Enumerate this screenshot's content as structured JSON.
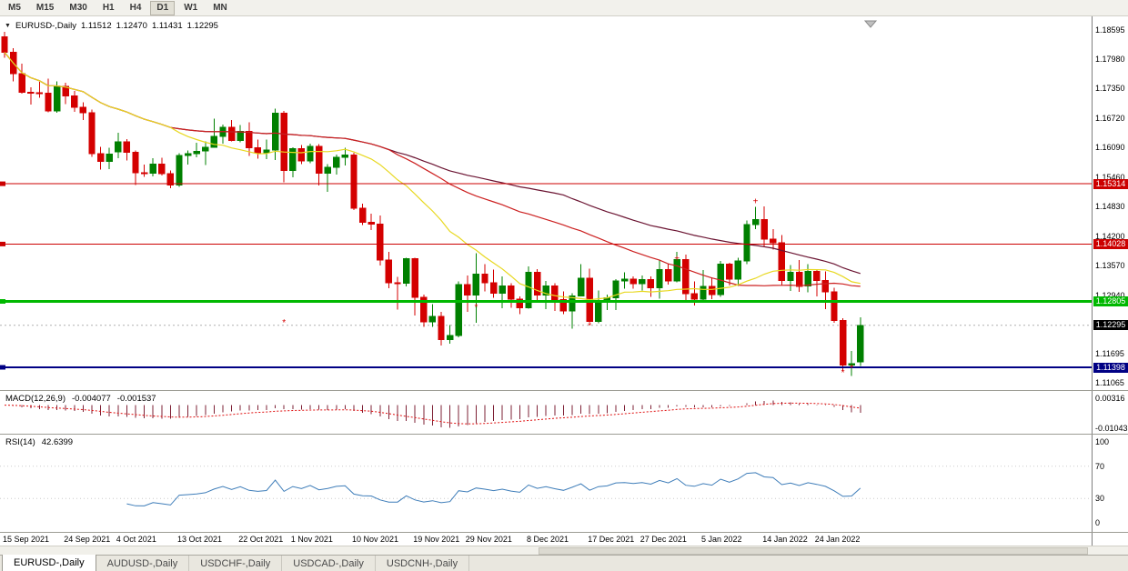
{
  "toolbar": {
    "timeframes": [
      "M5",
      "M15",
      "M30",
      "H1",
      "H4",
      "D1",
      "W1",
      "MN"
    ],
    "active": "D1"
  },
  "chart_header": {
    "dropdown_icon": "▼",
    "symbol": "EURUSD-,Daily",
    "open": "1.11512",
    "high": "1.12470",
    "low": "1.11431",
    "close": "1.12295"
  },
  "price_axis": {
    "ticks": [
      "1.18595",
      "1.17980",
      "1.17350",
      "1.16720",
      "1.16090",
      "1.15460",
      "1.14830",
      "1.14200",
      "1.13570",
      "1.12940",
      "1.12310",
      "1.11695",
      "1.11065"
    ]
  },
  "hlines": [
    {
      "price": 1.15314,
      "label": "1.15314",
      "color": "#cc0000",
      "thickness": 1
    },
    {
      "price": 1.14028,
      "label": "1.14028",
      "color": "#cc0000",
      "thickness": 1
    },
    {
      "price": 1.12805,
      "label": "1.12805",
      "color": "#00b800",
      "thickness": 3
    },
    {
      "price": 1.11398,
      "label": "1.11398",
      "color": "#000084",
      "thickness": 2
    }
  ],
  "current_price": {
    "value": 1.12295,
    "label": "1.12295",
    "badge_color": "#000000"
  },
  "macd": {
    "label": "MACD(12,26,9)",
    "main_value": "-0.004077",
    "signal_value": "-0.001537",
    "fast": 12,
    "slow": 26,
    "signal": 9,
    "axis_ticks": [
      "0.00316",
      "-0.01043"
    ],
    "range": [
      0.0065,
      -0.0135
    ],
    "histogram_color": "#7e2035",
    "signal_color": "#e01010"
  },
  "rsi": {
    "label": "RSI(14)",
    "value": "42.6399",
    "period": 14,
    "axis_ticks": [
      "100",
      "70",
      "30",
      "0"
    ],
    "range": [
      109,
      -12.4
    ],
    "levels": [
      70,
      30
    ],
    "line_color": "#3e7db9"
  },
  "x_axis": {
    "labels": [
      {
        "text": "15 Sep 2021",
        "bar": 0
      },
      {
        "text": "24 Sep 2021",
        "bar": 7
      },
      {
        "text": "4 Oct 2021",
        "bar": 13
      },
      {
        "text": "13 Oct 2021",
        "bar": 20
      },
      {
        "text": "22 Oct 2021",
        "bar": 27
      },
      {
        "text": "1 Nov 2021",
        "bar": 33
      },
      {
        "text": "10 Nov 2021",
        "bar": 40
      },
      {
        "text": "19 Nov 2021",
        "bar": 47
      },
      {
        "text": "29 Nov 2021",
        "bar": 53
      },
      {
        "text": "8 Dec 2021",
        "bar": 60
      },
      {
        "text": "17 Dec 2021",
        "bar": 67
      },
      {
        "text": "27 Dec 2021",
        "bar": 73
      },
      {
        "text": "5 Jan 2022",
        "bar": 80
      },
      {
        "text": "14 Jan 2022",
        "bar": 87
      },
      {
        "text": "24 Jan 2022",
        "bar": 93
      }
    ]
  },
  "tabs": [
    {
      "label": "EURUSD-,Daily",
      "active": true
    },
    {
      "label": "AUDUSD-,Daily",
      "active": false
    },
    {
      "label": "USDCHF-,Daily",
      "active": false
    },
    {
      "label": "USDCAD-,Daily",
      "active": false
    },
    {
      "label": "USDCNH-,Daily",
      "active": false
    }
  ],
  "chart_data": {
    "type": "candlestick",
    "symbol": "EURUSD",
    "timeframe": "Daily",
    "ylim": [
      1.10894,
      1.18886
    ],
    "bull_color": "#008000",
    "bear_color": "#d40000",
    "moving_averages": [
      {
        "window": 20,
        "color": "#e8d820"
      },
      {
        "window": 45,
        "color": "#cc2020"
      },
      {
        "window": 65,
        "color": "#6b1432"
      }
    ],
    "candles": [
      [
        1.1845,
        1.1856,
        1.18,
        1.1812
      ],
      [
        1.1812,
        1.1821,
        1.175,
        1.1766
      ],
      [
        1.1766,
        1.1788,
        1.1724,
        1.1727
      ],
      [
        1.1727,
        1.1737,
        1.17,
        1.1726
      ],
      [
        1.1726,
        1.1749,
        1.1715,
        1.1725
      ],
      [
        1.1725,
        1.1756,
        1.1684,
        1.1687
      ],
      [
        1.1687,
        1.175,
        1.1683,
        1.1739
      ],
      [
        1.1739,
        1.1747,
        1.1701,
        1.1719
      ],
      [
        1.1719,
        1.173,
        1.1685,
        1.1695
      ],
      [
        1.1695,
        1.1705,
        1.1667,
        1.1683
      ],
      [
        1.1683,
        1.169,
        1.1589,
        1.1596
      ],
      [
        1.1596,
        1.161,
        1.1562,
        1.1579
      ],
      [
        1.1579,
        1.1608,
        1.1563,
        1.1595
      ],
      [
        1.16,
        1.164,
        1.1586,
        1.1621
      ],
      [
        1.1621,
        1.1627,
        1.1581,
        1.1599
      ],
      [
        1.1599,
        1.1602,
        1.1529,
        1.1555
      ],
      [
        1.1555,
        1.1572,
        1.1546,
        1.1554
      ],
      [
        1.1554,
        1.1586,
        1.1547,
        1.1573
      ],
      [
        1.1573,
        1.1587,
        1.1549,
        1.1553
      ],
      [
        1.1553,
        1.156,
        1.1522,
        1.1529
      ],
      [
        1.1529,
        1.1597,
        1.1525,
        1.1592
      ],
      [
        1.1592,
        1.1602,
        1.1572,
        1.1596
      ],
      [
        1.1596,
        1.1619,
        1.1588,
        1.1601
      ],
      [
        1.1601,
        1.1622,
        1.1571,
        1.1609
      ],
      [
        1.1609,
        1.167,
        1.1609,
        1.1633
      ],
      [
        1.1633,
        1.1658,
        1.1617,
        1.1652
      ],
      [
        1.1652,
        1.1667,
        1.1622,
        1.1624
      ],
      [
        1.1624,
        1.1657,
        1.162,
        1.1643
      ],
      [
        1.1643,
        1.1663,
        1.1591,
        1.1608
      ],
      [
        1.1608,
        1.1626,
        1.1585,
        1.1598
      ],
      [
        1.1598,
        1.1626,
        1.1584,
        1.1603
      ],
      [
        1.1603,
        1.1692,
        1.1582,
        1.1682
      ],
      [
        1.1682,
        1.1687,
        1.1535,
        1.156
      ],
      [
        1.156,
        1.1609,
        1.1545,
        1.1606
      ],
      [
        1.1606,
        1.1614,
        1.1573,
        1.158
      ],
      [
        1.158,
        1.1617,
        1.1575,
        1.1611
      ],
      [
        1.1611,
        1.1616,
        1.1528,
        1.1554
      ],
      [
        1.1554,
        1.1573,
        1.1514,
        1.1567
      ],
      [
        1.1567,
        1.1594,
        1.1551,
        1.1588
      ],
      [
        1.1588,
        1.1608,
        1.157,
        1.1593
      ],
      [
        1.1593,
        1.1598,
        1.1475,
        1.1479
      ],
      [
        1.1479,
        1.1489,
        1.1443,
        1.1449
      ],
      [
        1.1449,
        1.1468,
        1.1433,
        1.1445
      ],
      [
        1.1445,
        1.1464,
        1.1357,
        1.1369
      ],
      [
        1.1369,
        1.1386,
        1.1309,
        1.132
      ],
      [
        1.132,
        1.1333,
        1.1263,
        1.1319
      ],
      [
        1.1319,
        1.1374,
        1.1312,
        1.1372
      ],
      [
        1.1372,
        1.1374,
        1.125,
        1.1289
      ],
      [
        1.1289,
        1.1295,
        1.1226,
        1.1237
      ],
      [
        1.1237,
        1.1275,
        1.1226,
        1.1248
      ],
      [
        1.1248,
        1.1258,
        1.1186,
        1.1199
      ],
      [
        1.1199,
        1.123,
        1.119,
        1.1208
      ],
      [
        1.1208,
        1.1323,
        1.1204,
        1.1316
      ],
      [
        1.1316,
        1.1336,
        1.1258,
        1.1294
      ],
      [
        1.1294,
        1.1383,
        1.1235,
        1.1339
      ],
      [
        1.1339,
        1.136,
        1.1302,
        1.132
      ],
      [
        1.132,
        1.1348,
        1.1288,
        1.1298
      ],
      [
        1.1298,
        1.1334,
        1.1266,
        1.1313
      ],
      [
        1.1313,
        1.1319,
        1.1267,
        1.1285
      ],
      [
        1.1285,
        1.1291,
        1.1253,
        1.1267
      ],
      [
        1.1267,
        1.1355,
        1.1265,
        1.1343
      ],
      [
        1.1343,
        1.1349,
        1.128,
        1.1294
      ],
      [
        1.1294,
        1.1324,
        1.1264,
        1.1313
      ],
      [
        1.1313,
        1.1319,
        1.126,
        1.1284
      ],
      [
        1.1284,
        1.1302,
        1.1253,
        1.126
      ],
      [
        1.126,
        1.1298,
        1.1222,
        1.1292
      ],
      [
        1.1292,
        1.136,
        1.1292,
        1.133
      ],
      [
        1.133,
        1.135,
        1.1236,
        1.1238
      ],
      [
        1.1238,
        1.1304,
        1.1234,
        1.128
      ],
      [
        1.128,
        1.1295,
        1.1262,
        1.1288
      ],
      [
        1.1288,
        1.1328,
        1.1262,
        1.1324
      ],
      [
        1.1324,
        1.1343,
        1.1308,
        1.1328
      ],
      [
        1.1328,
        1.1334,
        1.1308,
        1.1318
      ],
      [
        1.1318,
        1.1336,
        1.1304,
        1.1327
      ],
      [
        1.1327,
        1.1334,
        1.129,
        1.131
      ],
      [
        1.131,
        1.1369,
        1.1286,
        1.1348
      ],
      [
        1.1348,
        1.136,
        1.1316,
        1.1324
      ],
      [
        1.1324,
        1.1386,
        1.1321,
        1.137
      ],
      [
        1.137,
        1.138,
        1.1279,
        1.1297
      ],
      [
        1.1297,
        1.1323,
        1.1272,
        1.1285
      ],
      [
        1.1285,
        1.1347,
        1.1278,
        1.1312
      ],
      [
        1.1312,
        1.1332,
        1.1285,
        1.1295
      ],
      [
        1.1295,
        1.1367,
        1.129,
        1.136
      ],
      [
        1.136,
        1.1363,
        1.1314,
        1.1328
      ],
      [
        1.1328,
        1.1374,
        1.1313,
        1.1367
      ],
      [
        1.1367,
        1.1453,
        1.136,
        1.1444
      ],
      [
        1.1444,
        1.1482,
        1.1435,
        1.1455
      ],
      [
        1.1455,
        1.1483,
        1.1398,
        1.1413
      ],
      [
        1.1413,
        1.1435,
        1.1391,
        1.1406
      ],
      [
        1.1406,
        1.1422,
        1.1315,
        1.1325
      ],
      [
        1.1325,
        1.1358,
        1.1303,
        1.1343
      ],
      [
        1.1343,
        1.1369,
        1.1301,
        1.1313
      ],
      [
        1.1313,
        1.136,
        1.13,
        1.1344
      ],
      [
        1.1344,
        1.1349,
        1.1291,
        1.1325
      ],
      [
        1.1325,
        1.1344,
        1.1264,
        1.1301
      ],
      [
        1.1301,
        1.131,
        1.1235,
        1.124
      ],
      [
        1.124,
        1.1245,
        1.1131,
        1.1145
      ],
      [
        1.1145,
        1.1175,
        1.1121,
        1.1148
      ],
      [
        1.11512,
        1.1247,
        1.11431,
        1.12295
      ]
    ],
    "markers": [
      {
        "bar": 32,
        "price": 1.1235,
        "glyph": "*"
      },
      {
        "bar": 54,
        "price": 1.1268,
        "glyph": "*"
      },
      {
        "bar": 67,
        "price": 1.1228,
        "glyph": "*"
      },
      {
        "bar": 96,
        "price": 1.1128,
        "glyph": "*"
      },
      {
        "bar": 97,
        "price": 1.1138,
        "glyph": "*"
      },
      {
        "bar": 77,
        "price": 1.1372,
        "glyph": "+"
      },
      {
        "bar": 86,
        "price": 1.1494,
        "glyph": "+"
      }
    ]
  }
}
